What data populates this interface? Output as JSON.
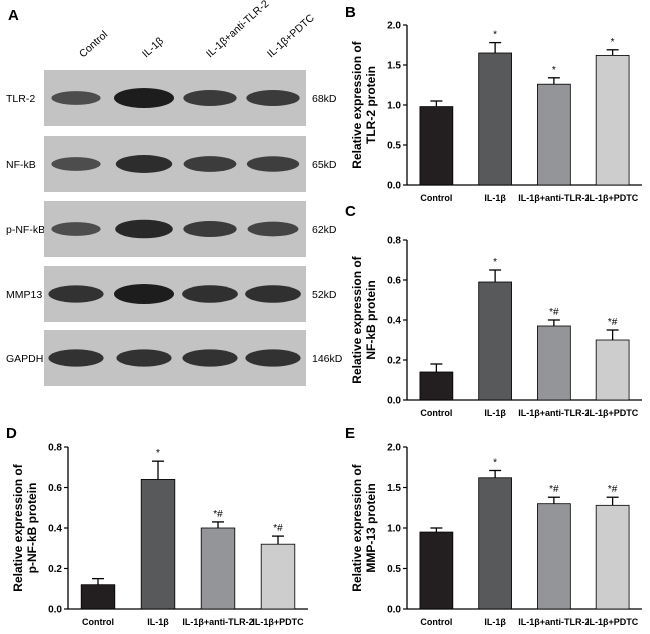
{
  "panels": {
    "a": {
      "letter": "A",
      "lane_labels": [
        "Control",
        "IL-1β",
        "IL-1β+anti-TLR-2",
        "IL-1β+PDTC"
      ],
      "blots": [
        {
          "protein": "TLR-2",
          "size": "68kD",
          "relative_intensity": [
            0.55,
            1.0,
            0.72,
            0.72
          ]
        },
        {
          "protein": "NF-kB",
          "size": "65kD",
          "relative_intensity": [
            0.55,
            0.85,
            0.7,
            0.68
          ]
        },
        {
          "protein": "p-NF-kB",
          "size": "62kD",
          "relative_intensity": [
            0.55,
            0.9,
            0.72,
            0.62
          ]
        },
        {
          "protein": "MMP13",
          "size": "52kD",
          "relative_intensity": [
            0.8,
            1.0,
            0.82,
            0.82
          ]
        },
        {
          "protein": "GAPDH",
          "size": "146kD",
          "relative_intensity": [
            0.8,
            0.8,
            0.8,
            0.8
          ]
        }
      ]
    }
  },
  "chart_data": [
    {
      "panel": "B",
      "type": "bar",
      "categories": [
        "Control",
        "IL-1β",
        "IL-1β+anti-TLR-2",
        "IL-1β+PDTC"
      ],
      "values": [
        0.98,
        1.65,
        1.26,
        1.62
      ],
      "errors": [
        0.07,
        0.13,
        0.08,
        0.07
      ],
      "annotations": [
        "",
        "*",
        "*",
        "*"
      ],
      "ylabel_lines": [
        "Relative expression of",
        "TLR-2 protein"
      ],
      "ylim": [
        0,
        2.0
      ],
      "yticks": [
        "0.0",
        "0.5",
        "1.0",
        "1.5",
        "2.0"
      ]
    },
    {
      "panel": "C",
      "type": "bar",
      "categories": [
        "Control",
        "IL-1β",
        "IL-1β+anti-TLR-2",
        "IL-1β+PDTC"
      ],
      "values": [
        0.14,
        0.59,
        0.37,
        0.3
      ],
      "errors": [
        0.04,
        0.06,
        0.03,
        0.05
      ],
      "annotations": [
        "",
        "*",
        "*#",
        "*#"
      ],
      "ylabel_lines": [
        "Relative expression of",
        "NF-kB protein"
      ],
      "ylim": [
        0,
        0.8
      ],
      "yticks": [
        "0.0",
        "0.2",
        "0.4",
        "0.6",
        "0.8"
      ]
    },
    {
      "panel": "D",
      "type": "bar",
      "categories": [
        "Control",
        "IL-1β",
        "IL-1β+anti-TLR-2",
        "IL-1β+PDTC"
      ],
      "values": [
        0.12,
        0.64,
        0.4,
        0.32
      ],
      "errors": [
        0.03,
        0.09,
        0.03,
        0.04
      ],
      "annotations": [
        "",
        "*",
        "*#",
        "*#"
      ],
      "ylabel_lines": [
        "Relative expression of",
        "p-NF-kB protein"
      ],
      "ylim": [
        0,
        0.8
      ],
      "yticks": [
        "0.0",
        "0.2",
        "0.4",
        "0.6",
        "0.8"
      ]
    },
    {
      "panel": "E",
      "type": "bar",
      "categories": [
        "Control",
        "IL-1β",
        "IL-1β+anti-TLR-2",
        "IL-1β+PDTC"
      ],
      "values": [
        0.95,
        1.62,
        1.3,
        1.28
      ],
      "errors": [
        0.05,
        0.09,
        0.08,
        0.1
      ],
      "annotations": [
        "",
        "*",
        "*#",
        "*#"
      ],
      "ylabel_lines": [
        "Relative expression of",
        "MMP-13 protein"
      ],
      "ylim": [
        0,
        2.0
      ],
      "yticks": [
        "0.0",
        "0.5",
        "1.0",
        "1.5",
        "2.0"
      ]
    }
  ],
  "colors": {
    "bars": [
      "#231f20",
      "#58595b",
      "#939598",
      "#cdcdcd"
    ],
    "blot_background": "#c3c3c3",
    "band": "#141414",
    "axis": "#000000"
  }
}
